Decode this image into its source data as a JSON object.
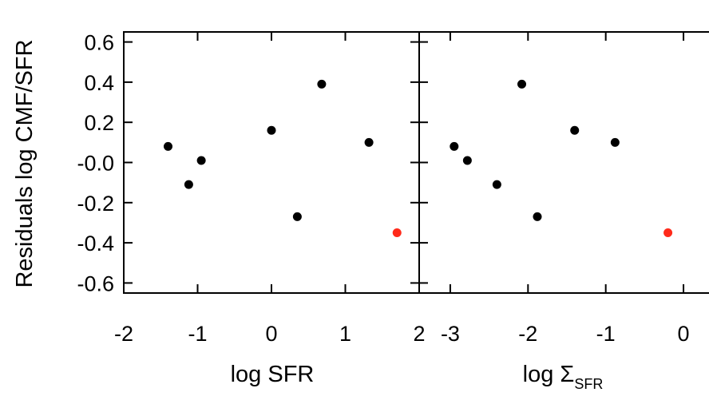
{
  "colors": {
    "point": "#000000",
    "highlight_point": "#ff2a1a",
    "frame": "#000000",
    "background": "#ffffff"
  },
  "chart_data": [
    {
      "type": "scatter",
      "panel": "left",
      "xlabel": "log SFR",
      "ylabel": "Residuals log CMF/SFR",
      "xlim": [
        -2,
        2
      ],
      "ylim": [
        -0.65,
        0.65
      ],
      "xticks": [
        "-2",
        "-1",
        "0",
        "1",
        "2"
      ],
      "yticks": [
        "0.6",
        "0.4",
        "0.2",
        "-0.0",
        "-0.2",
        "-0.4",
        "-0.6"
      ],
      "grid": false,
      "points": [
        {
          "x": -1.4,
          "y": 0.08,
          "color": "black"
        },
        {
          "x": -1.12,
          "y": -0.11,
          "color": "black"
        },
        {
          "x": -0.95,
          "y": 0.01,
          "color": "black"
        },
        {
          "x": 0.0,
          "y": 0.16,
          "color": "black"
        },
        {
          "x": 0.35,
          "y": -0.27,
          "color": "black"
        },
        {
          "x": 0.68,
          "y": 0.39,
          "color": "black"
        },
        {
          "x": 1.32,
          "y": 0.1,
          "color": "black"
        },
        {
          "x": 1.7,
          "y": -0.35,
          "color": "red"
        }
      ]
    },
    {
      "type": "scatter",
      "panel": "right",
      "xlabel": "log Σ",
      "xlabel_sub": "SFR",
      "xlim": [
        -3.4,
        0.4
      ],
      "ylim": [
        -0.65,
        0.65
      ],
      "xticks": [
        "-3",
        "-2",
        "-1",
        "0"
      ],
      "grid": false,
      "points": [
        {
          "x": -2.95,
          "y": 0.08,
          "color": "black"
        },
        {
          "x": -2.78,
          "y": 0.01,
          "color": "black"
        },
        {
          "x": -2.4,
          "y": -0.11,
          "color": "black"
        },
        {
          "x": -2.08,
          "y": 0.39,
          "color": "black"
        },
        {
          "x": -1.88,
          "y": -0.27,
          "color": "black"
        },
        {
          "x": -1.4,
          "y": 0.16,
          "color": "black"
        },
        {
          "x": -0.88,
          "y": 0.1,
          "color": "black"
        },
        {
          "x": -0.2,
          "y": -0.35,
          "color": "red"
        }
      ]
    }
  ]
}
